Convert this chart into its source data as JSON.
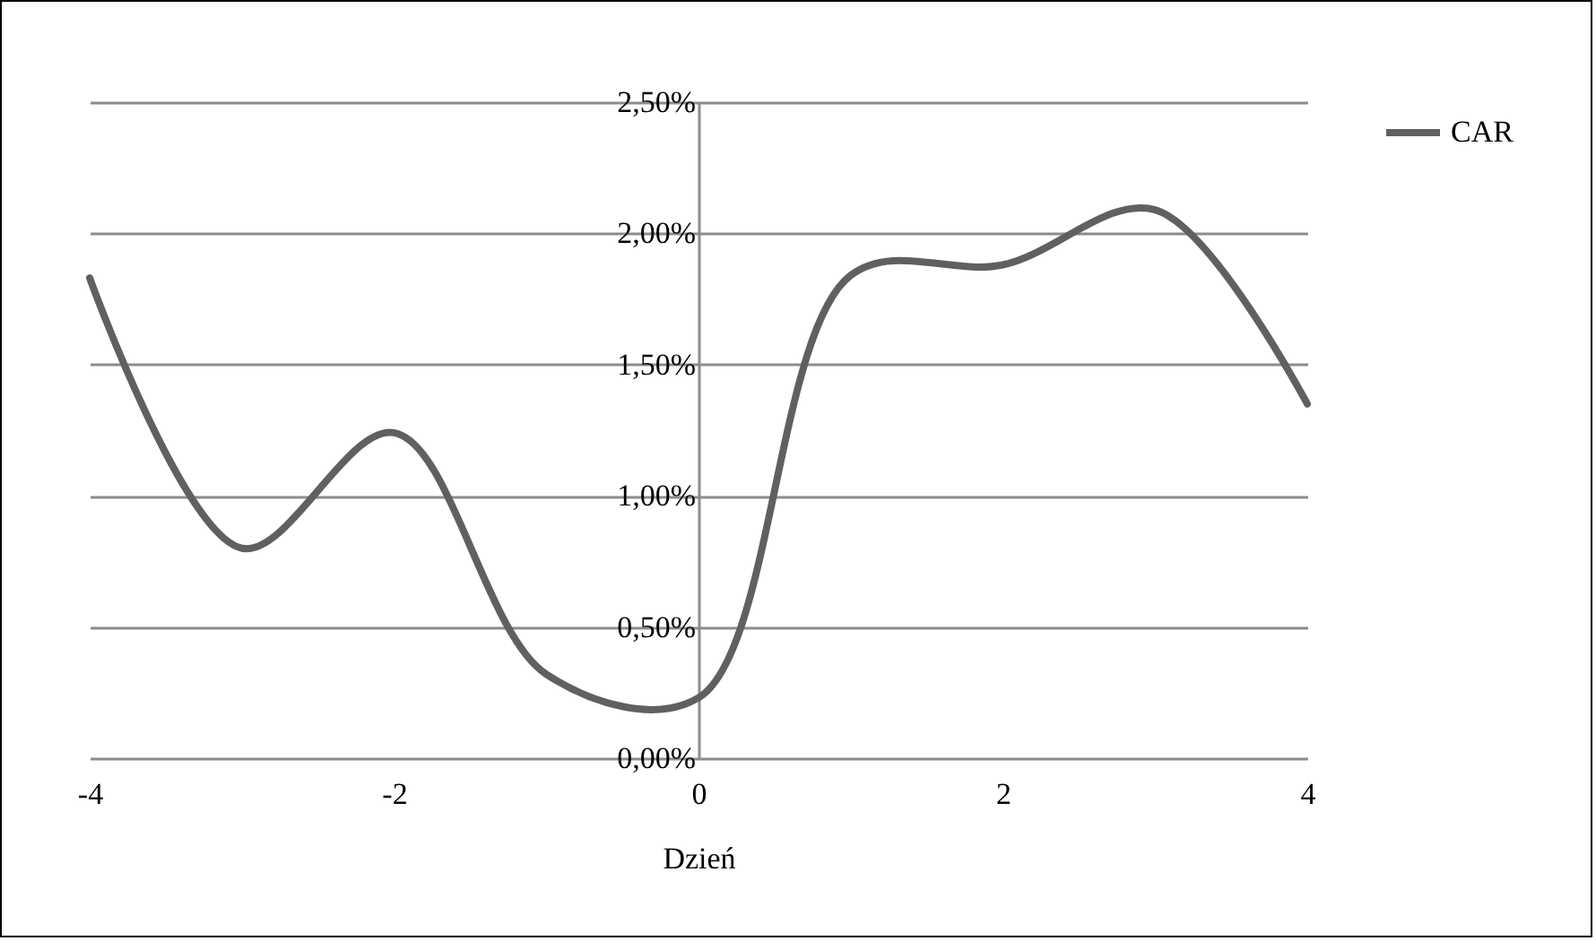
{
  "chart_data": {
    "type": "line",
    "xlabel": "Dzień",
    "x": [
      -4,
      -3,
      -2,
      -1,
      0,
      1,
      2,
      3,
      4
    ],
    "series": [
      {
        "name": "CAR",
        "color": "#5f6064",
        "values": [
          1.83,
          0.8,
          1.24,
          0.32,
          0.23,
          1.84,
          1.88,
          2.09,
          1.35
        ]
      }
    ],
    "xlim": [
      -4,
      4
    ],
    "xticks": [
      -4,
      -2,
      0,
      2,
      4
    ],
    "ylim": [
      0,
      2.5
    ],
    "yticks": [
      {
        "value": 0,
        "label": "0,00%"
      },
      {
        "value": 0.5,
        "label": "0,50%"
      },
      {
        "value": 1,
        "label": "1,00%"
      },
      {
        "value": 1.5,
        "label": "1,50%"
      },
      {
        "value": 2,
        "label": "2,00%"
      },
      {
        "value": 2.5,
        "label": "2,50%"
      }
    ],
    "grid": "y",
    "legend": "right",
    "marker": "none",
    "line_style": "solid"
  }
}
